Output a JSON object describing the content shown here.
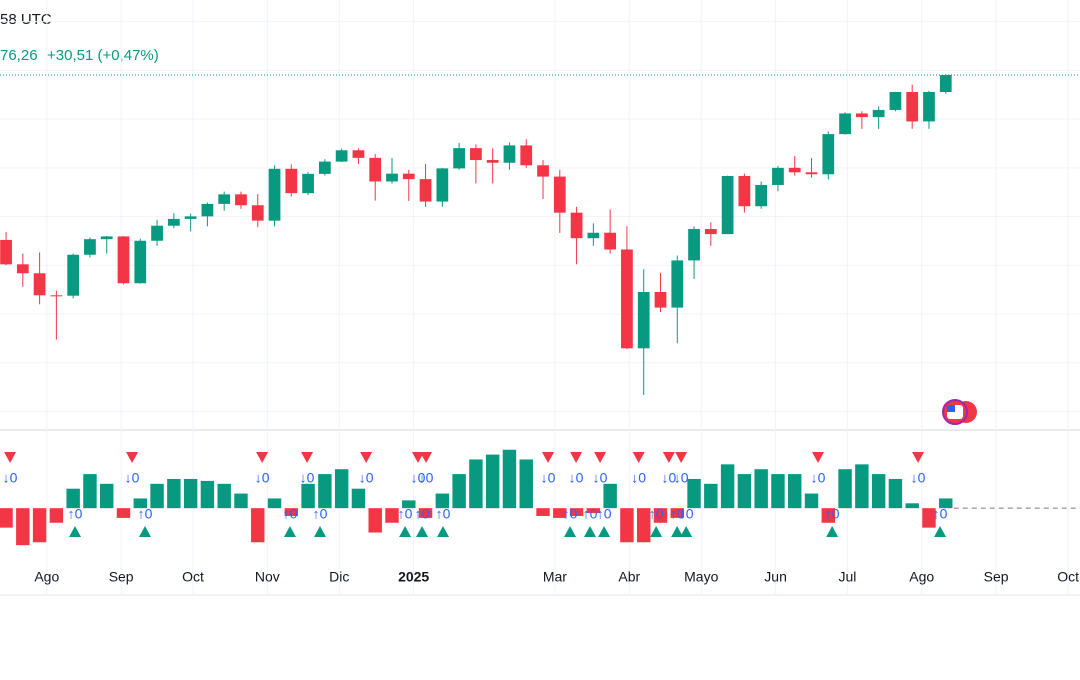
{
  "header": {
    "time_fragment": "58 UTC",
    "price_fragment": "76,26",
    "change": "+30,51 (+0,47%)"
  },
  "chart_data": {
    "type": "candlestick",
    "up_color": "#089981",
    "down_color": "#f23645",
    "x": [
      0,
      1,
      2,
      3,
      4,
      5,
      6,
      7,
      8,
      9,
      10,
      11,
      12,
      13,
      14,
      15,
      16,
      17,
      18,
      19,
      20,
      21,
      22,
      23,
      24,
      25,
      26,
      27,
      28,
      29,
      30,
      31,
      32,
      33,
      34,
      35,
      36,
      37,
      38,
      39,
      40,
      41,
      42,
      43,
      44,
      45,
      46,
      47,
      48,
      49,
      50,
      51,
      52,
      53,
      54,
      55,
      56
    ],
    "open": [
      5630,
      5505,
      5459,
      5346,
      5344,
      5554,
      5634,
      5648,
      5408,
      5626,
      5703,
      5738,
      5751,
      5815,
      5864,
      5808,
      5729,
      5995,
      5870,
      5969,
      6032,
      6090,
      6051,
      5930,
      5970,
      5942,
      5827,
      5997,
      6101,
      6040,
      6026,
      6115,
      6013,
      5955,
      5770,
      5639,
      5667,
      5581,
      5074,
      5363,
      5283,
      5525,
      5686,
      5660,
      5958,
      5803,
      5912,
      6000,
      5977,
      5967,
      6173,
      6279,
      6260,
      6297,
      6389,
      6238,
      6389
    ],
    "high": [
      5670,
      5560,
      5566,
      5370,
      5560,
      5643,
      5651,
      5650,
      5636,
      5733,
      5767,
      5765,
      5822,
      5878,
      5878,
      5865,
      6012,
      6018,
      5978,
      6044,
      6099,
      6100,
      6070,
      6050,
      5990,
      6020,
      6000,
      6128,
      6120,
      6100,
      6130,
      6147,
      6040,
      5990,
      5800,
      5715,
      5786,
      5700,
      5480,
      5460,
      5550,
      5700,
      5720,
      5960,
      5970,
      5930,
      6010,
      6060,
      6050,
      6187,
      6285,
      6290,
      6315,
      6390,
      6427,
      6395,
      6480
    ],
    "low": [
      5500,
      5390,
      5300,
      5119,
      5330,
      5540,
      5560,
      5402,
      5406,
      5600,
      5690,
      5674,
      5700,
      5780,
      5790,
      5696,
      5700,
      5853,
      5860,
      5960,
      6030,
      6020,
      5832,
      5920,
      5830,
      5800,
      5800,
      5990,
      5920,
      5920,
      5990,
      6000,
      5840,
      5666,
      5505,
      5600,
      5560,
      5069,
      4835,
      5260,
      5100,
      5430,
      5600,
      5660,
      5770,
      5790,
      5880,
      5960,
      5950,
      5940,
      6170,
      6200,
      6200,
      6290,
      6200,
      6200,
      6380
    ],
    "close": [
      5505,
      5459,
      5346,
      5344,
      5554,
      5634,
      5648,
      5408,
      5626,
      5703,
      5738,
      5751,
      5815,
      5864,
      5808,
      5729,
      5995,
      5870,
      5969,
      6032,
      6090,
      6051,
      5930,
      5970,
      5942,
      5827,
      5997,
      6101,
      6040,
      6026,
      6115,
      6013,
      5955,
      5770,
      5639,
      5667,
      5581,
      5074,
      5363,
      5283,
      5525,
      5686,
      5660,
      5958,
      5803,
      5912,
      6000,
      5977,
      5967,
      6173,
      6279,
      6260,
      6297,
      6389,
      6238,
      6389,
      6476
    ],
    "xlim": [
      -0.36,
      64.0
    ],
    "ylim": [
      4655,
      6861
    ],
    "ygrid": [
      4750,
      5000,
      5250,
      5500,
      5750,
      6000,
      6250,
      6500,
      6750
    ],
    "xticks": [
      {
        "value": 2.43,
        "label": "Ago"
      },
      {
        "value": 6.86,
        "label": "Sep"
      },
      {
        "value": 11.14,
        "label": "Oct"
      },
      {
        "value": 15.57,
        "label": "Nov"
      },
      {
        "value": 19.86,
        "label": "Dic"
      },
      {
        "value": 24.29,
        "label": "2025"
      },
      {
        "value": 32.71,
        "label": "Mar"
      },
      {
        "value": 37.14,
        "label": "Abr"
      },
      {
        "value": 41.43,
        "label": "Mayo"
      },
      {
        "value": 45.86,
        "label": "Jun"
      },
      {
        "value": 50.14,
        "label": "Jul"
      },
      {
        "value": 54.57,
        "label": "Ago"
      },
      {
        "value": 59.0,
        "label": "Sep"
      },
      {
        "value": 63.29,
        "label": "Oct"
      }
    ],
    "oscillator": {
      "ylim": [
        -45,
        70
      ],
      "values": [
        -20,
        -38,
        -35,
        -15,
        20,
        35,
        25,
        -10,
        10,
        25,
        30,
        30,
        28,
        25,
        15,
        -35,
        10,
        -8,
        25,
        35,
        40,
        20,
        -25,
        -15,
        8,
        -10,
        15,
        35,
        50,
        55,
        60,
        50,
        -8,
        -10,
        -8,
        -5,
        25,
        -35,
        -35,
        -15,
        -10,
        30,
        25,
        45,
        35,
        40,
        35,
        35,
        15,
        -15,
        40,
        45,
        35,
        30,
        5,
        -20,
        10
      ],
      "sell_signals": [
        {
          "x": 0.24,
          "label": "↓0"
        },
        {
          "x": 7.51,
          "label": "↓0"
        },
        {
          "x": 15.26,
          "label": "↓0"
        },
        {
          "x": 17.94,
          "label": "↓0"
        },
        {
          "x": 21.46,
          "label": "↓0"
        },
        {
          "x": 24.55,
          "label": "↓0"
        },
        {
          "x": 25.03,
          "label": "↓0"
        },
        {
          "x": 32.3,
          "label": "↓0"
        },
        {
          "x": 33.97,
          "label": "↓0"
        },
        {
          "x": 35.4,
          "label": "↓0"
        },
        {
          "x": 37.7,
          "label": "↓0"
        },
        {
          "x": 39.5,
          "label": "↓0"
        },
        {
          "x": 40.23,
          "label": "↓0"
        },
        {
          "x": 48.39,
          "label": "↓0"
        },
        {
          "x": 54.35,
          "label": "↓0"
        }
      ],
      "buy_signals": [
        {
          "x": 4.11,
          "label": "↑0"
        },
        {
          "x": 8.28,
          "label": "↑0"
        },
        {
          "x": 16.92,
          "label": "↑0"
        },
        {
          "x": 18.71,
          "label": "↑0"
        },
        {
          "x": 23.78,
          "label": "↑0"
        },
        {
          "x": 24.79,
          "label": "↑0"
        },
        {
          "x": 26.04,
          "label": "↑0"
        },
        {
          "x": 33.61,
          "label": "↑0"
        },
        {
          "x": 34.8,
          "label": "↑0"
        },
        {
          "x": 35.64,
          "label": "↑0"
        },
        {
          "x": 38.74,
          "label": "↑0"
        },
        {
          "x": 39.99,
          "label": "↑0"
        },
        {
          "x": 40.53,
          "label": "↑0"
        },
        {
          "x": 49.23,
          "label": "↑0"
        },
        {
          "x": 55.66,
          "label": "↑0"
        }
      ]
    }
  }
}
